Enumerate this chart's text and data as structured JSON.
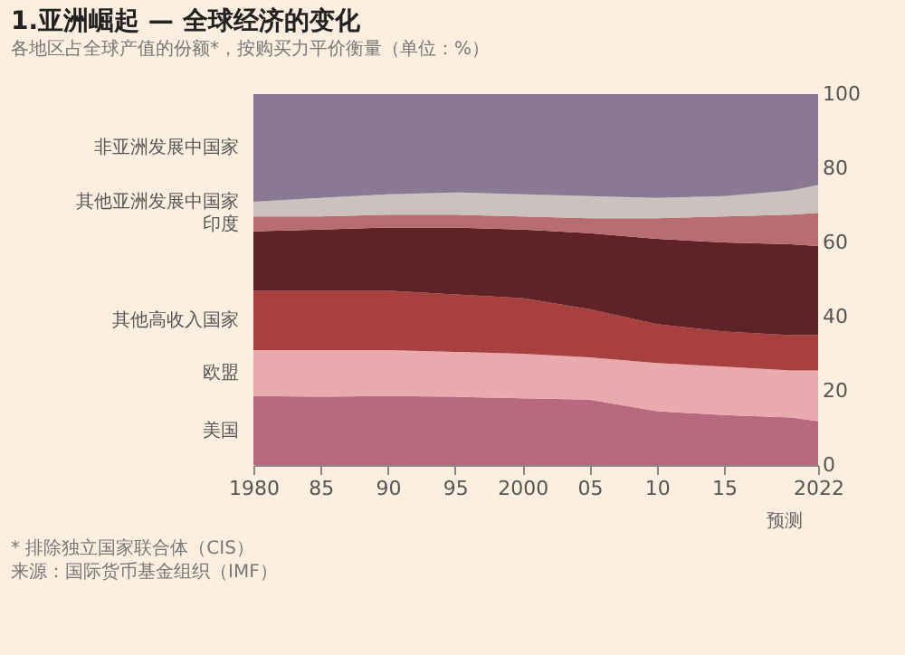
{
  "chart_data": {
    "type": "area",
    "title": "1.亚洲崛起 — 全球经济的变化",
    "subtitle": "各地区占全球产值的份额*，按购买力平价衡量（单位：%）",
    "x": [
      1980,
      1985,
      1990,
      1995,
      2000,
      2005,
      2010,
      2015,
      2020,
      2022
    ],
    "stacked": true,
    "series": [
      {
        "name": "美国",
        "color": "#b8687f",
        "values": [
          18.6,
          18.4,
          18.6,
          18.4,
          18,
          17.6,
          14.5,
          13.5,
          12.8,
          11.8
        ]
      },
      {
        "name": "欧盟",
        "color": "#e9aaad",
        "values": [
          12.4,
          12.6,
          12.4,
          12.1,
          12,
          11.4,
          13,
          13,
          12.7,
          13.7
        ]
      },
      {
        "name": "其他高收入国家",
        "color": "#a8403f",
        "values": [
          16,
          16,
          16,
          15.5,
          15,
          13,
          10.5,
          9.5,
          9.5,
          9.5
        ]
      },
      {
        "color": "#5e2227",
        "values": [
          16,
          16.5,
          17,
          18,
          18.5,
          20.5,
          23,
          24,
          24.5,
          24
        ]
      },
      {
        "name": "印度",
        "color": "#b86d70",
        "values": [
          4,
          3.5,
          3.5,
          3.5,
          3.5,
          4,
          5.5,
          7,
          8,
          9
        ]
      },
      {
        "name": "其他亚洲发展中国家",
        "color": "#cbc2c0",
        "values": [
          4,
          5,
          5.5,
          6,
          6,
          6,
          5.5,
          5.5,
          6.5,
          7.5
        ]
      },
      {
        "name": "非亚洲发展中国家",
        "color": "#8b7893",
        "values": [
          29,
          28,
          27,
          26.5,
          27,
          27.5,
          28,
          27.5,
          26,
          24.5
        ]
      }
    ],
    "xlim": [
      1980,
      2022
    ],
    "xticks": [
      1980,
      {
        "value": 1985,
        "label": "85"
      },
      {
        "value": 1990,
        "label": "90"
      },
      {
        "value": 1995,
        "label": "95"
      },
      2000,
      {
        "value": 2005,
        "label": "05"
      },
      {
        "value": 2010,
        "label": "10"
      },
      {
        "value": 2015,
        "label": "15"
      },
      2022
    ],
    "ylim": [
      0,
      100
    ],
    "yticks": [
      0,
      20,
      40,
      60,
      80,
      100
    ],
    "annotations": [
      {
        "text": "预测",
        "x": 2019.5,
        "y": 0
      },
      "* 排除独立国家联合体（CIS）",
      "来源：国际货币基金组织（IMF）"
    ]
  }
}
